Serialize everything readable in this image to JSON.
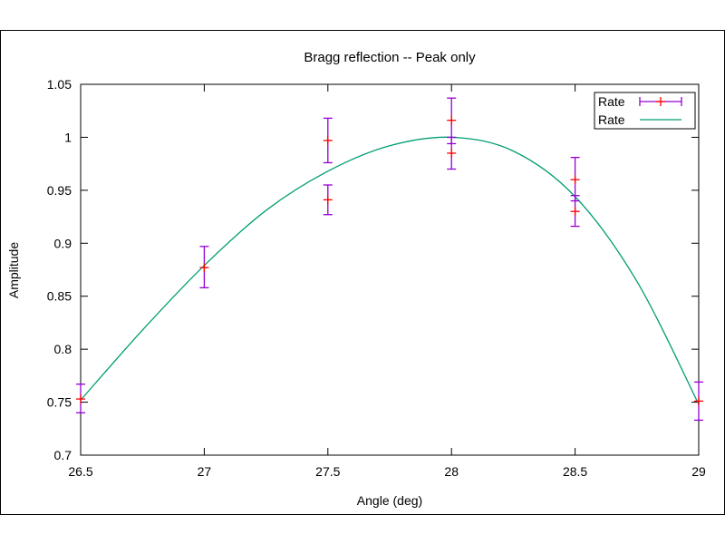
{
  "chart_data": {
    "type": "scatter",
    "title": "Bragg reflection -- Peak only",
    "xlabel": "Angle (deg)",
    "ylabel": "Amplitude",
    "xlim": [
      26.5,
      29
    ],
    "ylim": [
      0.7,
      1.05
    ],
    "x_ticks": [
      "26.5",
      "27",
      "27.5",
      "28",
      "28.5",
      "29"
    ],
    "y_ticks": [
      "0.7",
      "0.75",
      "0.8",
      "0.85",
      "0.9",
      "0.95",
      "1",
      "1.05"
    ],
    "grid": false,
    "legend_position": "top-right",
    "series": [
      {
        "name": "Rate",
        "kind": "errorbars",
        "color": "#9400d3",
        "marker_color": "#ff0000",
        "points": [
          {
            "x": 26.5,
            "y": 0.753,
            "ylow": 0.74,
            "yhigh": 0.767
          },
          {
            "x": 27.0,
            "y": 0.877,
            "ylow": 0.858,
            "yhigh": 0.897
          },
          {
            "x": 27.5,
            "y": 0.997,
            "ylow": 0.976,
            "yhigh": 1.018
          },
          {
            "x": 27.5,
            "y": 0.941,
            "ylow": 0.927,
            "yhigh": 0.955
          },
          {
            "x": 28.0,
            "y": 1.016,
            "ylow": 0.994,
            "yhigh": 1.037
          },
          {
            "x": 28.0,
            "y": 0.985,
            "ylow": 0.97,
            "yhigh": 1.0
          },
          {
            "x": 28.5,
            "y": 0.96,
            "ylow": 0.94,
            "yhigh": 0.981
          },
          {
            "x": 28.5,
            "y": 0.93,
            "ylow": 0.916,
            "yhigh": 0.945
          },
          {
            "x": 29.0,
            "y": 0.751,
            "ylow": 0.733,
            "yhigh": 0.769
          }
        ]
      },
      {
        "name": "Rate",
        "kind": "line",
        "color": "#009e73",
        "x": [
          26.5,
          26.75,
          27.0,
          27.25,
          27.5,
          27.75,
          28.0,
          28.25,
          28.5,
          28.75,
          29.0
        ],
        "y": [
          0.752,
          0.818,
          0.879,
          0.931,
          0.968,
          0.992,
          1.0,
          0.987,
          0.944,
          0.864,
          0.748
        ]
      }
    ]
  }
}
